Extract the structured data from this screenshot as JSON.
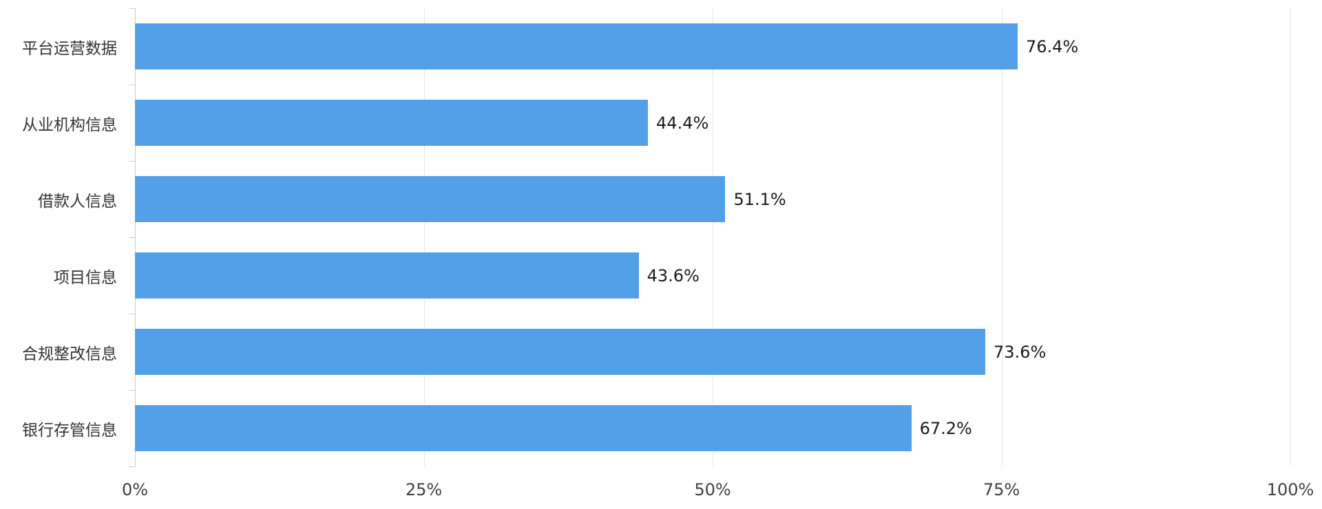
{
  "chart_data": {
    "type": "bar",
    "orientation": "horizontal",
    "title": "",
    "xlabel": "",
    "ylabel": "",
    "categories": [
      "平台运营数据",
      "从业机构信息",
      "借款人信息",
      "项目信息",
      "合规整改信息",
      "银行存管信息"
    ],
    "values": [
      76.4,
      44.4,
      51.1,
      43.6,
      73.6,
      67.2
    ],
    "value_labels": [
      "76.4%",
      "44.4%",
      "51.1%",
      "43.6%",
      "73.6%",
      "67.2%"
    ],
    "x_ticks": [
      "0%",
      "25%",
      "50%",
      "75%",
      "100%"
    ],
    "x_tick_values": [
      0,
      25,
      50,
      75,
      100
    ],
    "xlim": [
      0,
      100
    ],
    "grid": true,
    "legend": "none",
    "bar_color": "#54a0e8"
  }
}
